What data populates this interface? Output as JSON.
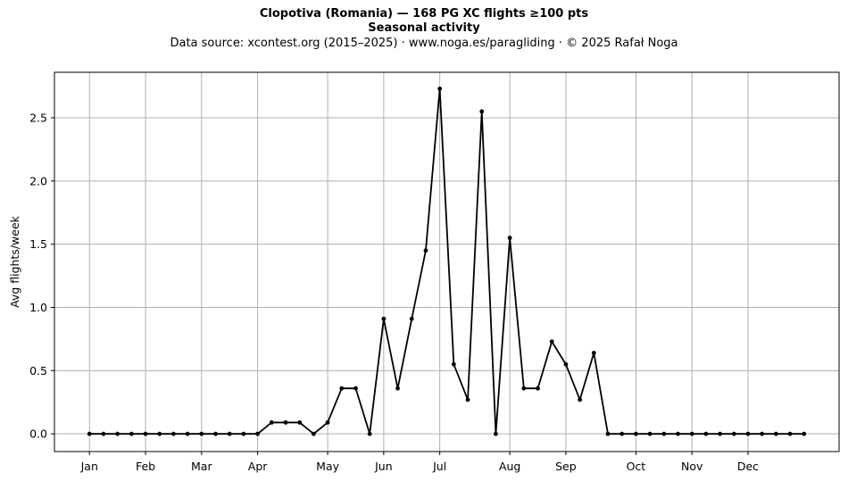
{
  "title": {
    "line1": "Clopotiva (Romania)  —  168 PG XC flights ≥100 pts",
    "line2": "Seasonal activity",
    "line3": "Data source: xcontest.org (2015–2025)  ·  www.noga.es/paragliding  ·  © 2025 Rafał Noga"
  },
  "chart_data": {
    "type": "line",
    "ylabel": "Avg flights/week",
    "ylim": [
      -0.14,
      2.86
    ],
    "xlim": [
      -2.5,
      53.5
    ],
    "grid": true,
    "line_color": "#000000",
    "grid_color": "#b0b0b0",
    "x_ticks": [
      {
        "label": "Jan",
        "week": 0
      },
      {
        "label": "Feb",
        "week": 4
      },
      {
        "label": "Mar",
        "week": 8
      },
      {
        "label": "Apr",
        "week": 12
      },
      {
        "label": "May",
        "week": 17
      },
      {
        "label": "Jun",
        "week": 21
      },
      {
        "label": "Jul",
        "week": 25
      },
      {
        "label": "Aug",
        "week": 30
      },
      {
        "label": "Sep",
        "week": 34
      },
      {
        "label": "Oct",
        "week": 39
      },
      {
        "label": "Nov",
        "week": 43
      },
      {
        "label": "Dec",
        "week": 47
      }
    ],
    "y_ticks": [
      "0.0",
      "0.5",
      "1.0",
      "1.5",
      "2.0",
      "2.5"
    ],
    "y_tick_values": [
      0.0,
      0.5,
      1.0,
      1.5,
      2.0,
      2.5
    ],
    "values": [
      0,
      0,
      0,
      0,
      0,
      0,
      0,
      0,
      0,
      0,
      0,
      0,
      0,
      0.09,
      0.09,
      0.09,
      0,
      0.09,
      0.36,
      0.36,
      0,
      0.91,
      0.36,
      0.91,
      1.45,
      2.73,
      0.55,
      0.27,
      2.55,
      0,
      1.55,
      0.36,
      0.36,
      0.73,
      0.55,
      0.27,
      0.64,
      0,
      0,
      0,
      0,
      0,
      0,
      0,
      0,
      0,
      0,
      0,
      0,
      0,
      0,
      0
    ]
  }
}
